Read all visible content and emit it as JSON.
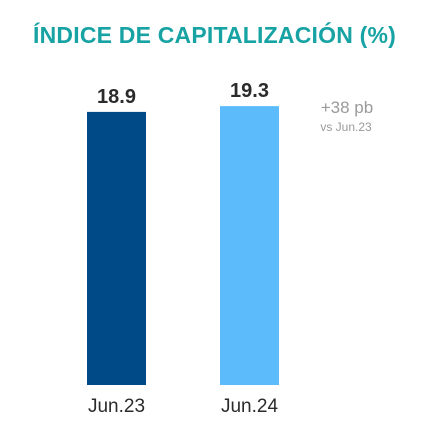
{
  "chart_data": {
    "type": "bar",
    "title": "ÍNDICE DE CAPITALIZACIÓN (%)",
    "categories": [
      "Jun.23",
      "Jun.24"
    ],
    "values": [
      18.9,
      19.3
    ],
    "data_labels": [
      "18.9",
      "19.3"
    ],
    "xlabel": "",
    "ylabel": "",
    "grid": false,
    "legend": "none",
    "annotation": {
      "main": "+38 pb",
      "sub": "vs Jun.23"
    },
    "colors": {
      "title": "#17a3a3",
      "bars": [
        "#004a87",
        "#5cbcfb"
      ],
      "annotation": "#9a9a9a",
      "labels": "#2b2b2b"
    }
  }
}
